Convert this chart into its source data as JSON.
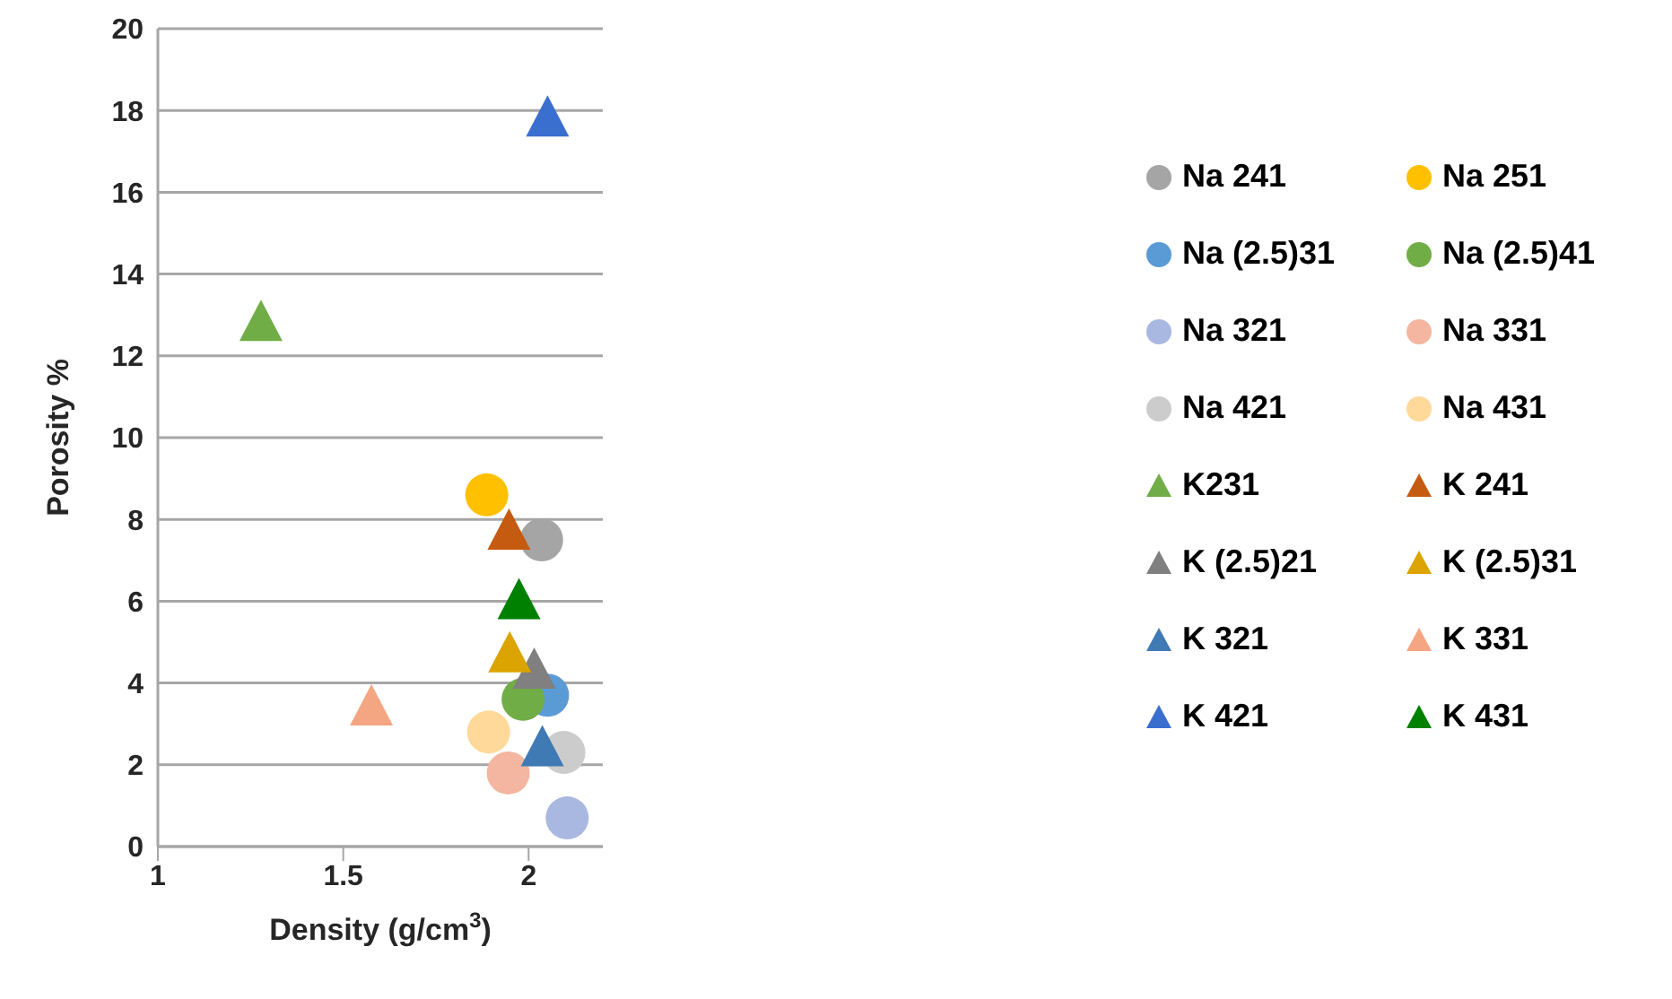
{
  "chart_data": {
    "type": "scatter",
    "xlabel": "Density (g/cm$^{3}$)",
    "ylabel": "Porosity %",
    "xlim": [
      1,
      2.2
    ],
    "xticks": [
      1,
      1.5,
      2
    ],
    "ylim": [
      0,
      20
    ],
    "yticks": [
      0,
      2,
      4,
      6,
      8,
      10,
      12,
      14,
      16,
      18,
      20
    ],
    "grid": "y",
    "legend": "right",
    "series": [
      {
        "name": "Na 241",
        "color": "#a5a5a5",
        "marker": "circle",
        "x": [
          2.035
        ],
        "values": [
          7.5
        ]
      },
      {
        "name": "Na 251",
        "color": "#ffc000",
        "marker": "circle",
        "x": [
          1.887
        ],
        "values": [
          8.6
        ]
      },
      {
        "name": "Na (2.5)31",
        "color": "#5b9bd5",
        "marker": "circle",
        "x": [
          2.051
        ],
        "values": [
          3.7
        ]
      },
      {
        "name": "Na (2.5)41",
        "color": "#70ad47",
        "marker": "circle",
        "x": [
          1.985
        ],
        "values": [
          3.6
        ]
      },
      {
        "name": "Na 321",
        "color": "#a9b8e0",
        "marker": "circle",
        "x": [
          2.104
        ],
        "values": [
          0.7
        ]
      },
      {
        "name": "Na 331",
        "color": "#f4b6a0",
        "marker": "circle",
        "x": [
          1.945
        ],
        "values": [
          1.8
        ]
      },
      {
        "name": "Na 421",
        "color": "#cccccc",
        "marker": "circle",
        "x": [
          2.095
        ],
        "values": [
          2.3
        ]
      },
      {
        "name": "Na 431",
        "color": "#ffd999",
        "marker": "circle",
        "x": [
          1.892
        ],
        "values": [
          2.8
        ]
      },
      {
        "name": "K231",
        "color": "#70ad47",
        "marker": "triangle",
        "x": [
          1.278
        ],
        "values": [
          12.8
        ]
      },
      {
        "name": "K 241",
        "color": "#c55a11",
        "marker": "triangle",
        "x": [
          1.947
        ],
        "values": [
          7.7
        ]
      },
      {
        "name": "K (2.5)21",
        "color": "#808080",
        "marker": "triangle",
        "x": [
          2.015
        ],
        "values": [
          4.3
        ]
      },
      {
        "name": "K (2.5)31",
        "color": "#dba400",
        "marker": "triangle",
        "x": [
          1.949
        ],
        "values": [
          4.7
        ]
      },
      {
        "name": "K 321",
        "color": "#3f7ab5",
        "marker": "triangle",
        "x": [
          2.037
        ],
        "values": [
          2.4
        ]
      },
      {
        "name": "K 331",
        "color": "#f4a582",
        "marker": "triangle",
        "x": [
          1.576
        ],
        "values": [
          3.4
        ]
      },
      {
        "name": "K 421",
        "color": "#3a6fd0",
        "marker": "triangle",
        "x": [
          2.051
        ],
        "values": [
          17.8
        ]
      },
      {
        "name": "K 431",
        "color": "#008000",
        "marker": "triangle",
        "x": [
          1.974
        ],
        "values": [
          6.0
        ]
      }
    ]
  }
}
